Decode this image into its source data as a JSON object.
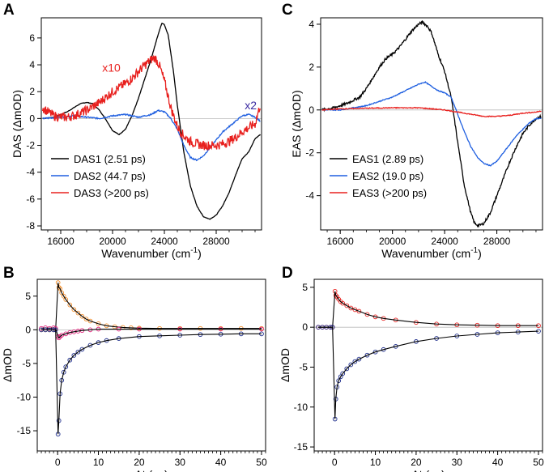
{
  "figure": {
    "colors": {
      "black": "#000000",
      "blue": "#1f5fe0",
      "red": "#e8201e",
      "orange": "#f28c28",
      "magenta": "#e0207a",
      "navy": "#1a2a8a",
      "purple": "#3a2aa0"
    }
  },
  "chart_data": [
    {
      "panel": "A",
      "type": "line",
      "xlabel_main": "Wavenumber (cm",
      "xlabel_sup": "-1",
      "xlabel_end": ")",
      "ylabel": "DAS (ΔmOD)",
      "xlim": [
        14500,
        31500
      ],
      "ylim": [
        -8.3,
        7.5
      ],
      "xticks": [
        16000,
        20000,
        24000,
        28000
      ],
      "xtick_labels": [
        "16000",
        "20000",
        "24000",
        "28000"
      ],
      "yticks": [
        -8,
        -6,
        -4,
        -2,
        0,
        2,
        4,
        6
      ],
      "ytick_labels": [
        "-8",
        "-6",
        "-4",
        "-2",
        "0",
        "2",
        "4",
        "6"
      ],
      "legend": [
        "DAS1 (2.51 ps)",
        "DAS2 (44.7 ps)",
        "DAS3 (>200 ps)"
      ],
      "annotations": [
        {
          "text": "x10",
          "x": 19200,
          "y": 3.5,
          "color": "red"
        },
        {
          "text": "x2",
          "x": 30200,
          "y": 0.7,
          "color": "purple"
        }
      ],
      "series": [
        {
          "name": "DAS1 (2.51 ps)",
          "color": "black",
          "x": [
            14600,
            15500,
            16500,
            17500,
            18000,
            18500,
            19000,
            19500,
            20000,
            20500,
            21000,
            21500,
            22000,
            22500,
            23000,
            23500,
            23800,
            24000,
            24300,
            24700,
            25000,
            25500,
            26000,
            26500,
            27000,
            27500,
            28000,
            28500,
            29000,
            29500,
            30000,
            30500,
            31000,
            31400
          ],
          "y": [
            0.0,
            0.1,
            0.5,
            1.1,
            1.2,
            1.1,
            0.6,
            -0.1,
            -0.9,
            -1.2,
            -0.8,
            0.2,
            1.5,
            3.0,
            4.5,
            6.2,
            7.1,
            7.0,
            6.2,
            3.5,
            1.0,
            -2.5,
            -5.0,
            -6.5,
            -7.3,
            -7.5,
            -7.2,
            -6.5,
            -5.5,
            -4.2,
            -3.0,
            -2.5,
            -1.5,
            -1.2
          ]
        },
        {
          "name": "DAS2 (44.7 ps)",
          "color": "blue",
          "x": [
            14600,
            16000,
            17000,
            18000,
            19000,
            20000,
            21000,
            22000,
            22500,
            23000,
            23500,
            24000,
            24500,
            25000,
            25500,
            26000,
            26500,
            27000,
            27500,
            28000,
            28500,
            29000,
            29500,
            30000,
            30500,
            31000,
            31400
          ],
          "y": [
            0.0,
            0.1,
            0.2,
            0.1,
            0.0,
            0.2,
            0.3,
            0.1,
            0.2,
            0.3,
            0.6,
            0.5,
            0.0,
            -0.8,
            -2.0,
            -2.9,
            -3.1,
            -2.8,
            -2.2,
            -1.6,
            -1.0,
            -0.6,
            -0.2,
            0.2,
            0.3,
            0.1,
            -0.2
          ]
        },
        {
          "name": "DAS3 (>200 ps)",
          "color": "red",
          "x": [
            14600,
            15000,
            15500,
            16000,
            16500,
            17000,
            17500,
            18000,
            18500,
            19000,
            19500,
            20000,
            20500,
            21000,
            21500,
            22000,
            22500,
            23000,
            23300,
            23600,
            24000,
            24500,
            25000,
            25500,
            26000,
            26500,
            27000,
            27500,
            28000,
            28500,
            29000,
            29500,
            30000,
            30500,
            31000,
            31400
          ],
          "y": [
            0.8,
            0.5,
            0.2,
            0.1,
            0.1,
            0.2,
            0.4,
            0.6,
            0.9,
            1.2,
            1.6,
            2.0,
            2.3,
            2.6,
            3.0,
            3.5,
            4.0,
            4.4,
            4.5,
            4.0,
            2.8,
            0.8,
            -0.6,
            -1.3,
            -1.7,
            -1.9,
            -2.0,
            -2.0,
            -2.0,
            -1.9,
            -1.7,
            -1.4,
            -1.0,
            -0.7,
            -0.4,
            1.0
          ]
        }
      ]
    },
    {
      "panel": "C",
      "type": "line",
      "xlabel_main": "Wavenumber (cm",
      "xlabel_sup": "-1",
      "xlabel_end": ")",
      "ylabel": "EAS (ΔmOD)",
      "xlim": [
        14500,
        31500
      ],
      "ylim": [
        -5.6,
        4.3
      ],
      "xticks": [
        16000,
        20000,
        24000,
        28000
      ],
      "xtick_labels": [
        "16000",
        "20000",
        "24000",
        "28000"
      ],
      "yticks": [
        -4,
        -2,
        0,
        2,
        4
      ],
      "ytick_labels": [
        "-4",
        "-2",
        "0",
        "2",
        "4"
      ],
      "legend": [
        "EAS1 (2.89 ps)",
        "EAS2 (19.0 ps)",
        "EAS3 (>200 ps)"
      ],
      "series": [
        {
          "name": "EAS1 (2.89 ps)",
          "color": "black",
          "x": [
            14600,
            15500,
            16500,
            17500,
            18000,
            18500,
            19000,
            19500,
            20000,
            20500,
            21000,
            21500,
            22000,
            22300,
            22700,
            23000,
            23500,
            24000,
            24500,
            25000,
            25500,
            26000,
            26300,
            26600,
            27000,
            27500,
            28000,
            28500,
            29000,
            29500,
            30000,
            30500,
            31000,
            31400
          ],
          "y": [
            0.0,
            0.1,
            0.3,
            0.6,
            1.0,
            1.5,
            2.0,
            2.4,
            2.6,
            2.9,
            3.3,
            3.7,
            4.0,
            4.1,
            3.9,
            3.6,
            2.6,
            1.8,
            0.6,
            -1.5,
            -3.5,
            -4.8,
            -5.3,
            -5.4,
            -5.3,
            -4.8,
            -4.0,
            -3.2,
            -2.4,
            -1.7,
            -1.1,
            -0.7,
            -0.4,
            -0.3
          ]
        },
        {
          "name": "EAS2 (19.0 ps)",
          "color": "blue",
          "x": [
            14600,
            16000,
            17000,
            18000,
            19000,
            20000,
            21000,
            22000,
            22500,
            23000,
            23500,
            24000,
            24500,
            25000,
            25500,
            26000,
            26500,
            27000,
            27500,
            28000,
            28500,
            29000,
            29500,
            30000,
            30500,
            31000,
            31400
          ],
          "y": [
            0.0,
            0.0,
            0.1,
            0.2,
            0.4,
            0.6,
            0.9,
            1.2,
            1.3,
            1.1,
            0.9,
            0.8,
            0.6,
            -0.2,
            -1.0,
            -1.7,
            -2.2,
            -2.5,
            -2.6,
            -2.4,
            -2.0,
            -1.6,
            -1.2,
            -0.9,
            -0.6,
            -0.4,
            -0.4
          ]
        },
        {
          "name": "EAS3 (>200 ps)",
          "color": "red",
          "x": [
            14600,
            16000,
            18000,
            20000,
            22000,
            23000,
            24000,
            25000,
            26000,
            27000,
            28000,
            29000,
            30000,
            31000,
            31400
          ],
          "y": [
            0.0,
            0.05,
            0.08,
            0.1,
            0.1,
            0.05,
            0.0,
            -0.1,
            -0.2,
            -0.3,
            -0.3,
            -0.25,
            -0.15,
            -0.1,
            -0.05
          ]
        }
      ]
    },
    {
      "panel": "B",
      "type": "scatter",
      "xlabel": "Δt (ps)",
      "ylabel": "ΔmOD",
      "xlim": [
        -5,
        51
      ],
      "ylim": [
        -18,
        7.5
      ],
      "xticks": [
        0,
        10,
        20,
        30,
        40,
        50
      ],
      "xtick_labels": [
        "0",
        "10",
        "20",
        "30",
        "40",
        "50"
      ],
      "yticks": [
        -15,
        -10,
        -5,
        0,
        5
      ],
      "ytick_labels": [
        "-15",
        "-10",
        "-5",
        "0",
        "5"
      ],
      "series": [
        {
          "name": "trace-orange",
          "color": "orange",
          "fit": "black",
          "x": [
            -4,
            -3,
            -2,
            -1,
            -0.5,
            0.1,
            0.3,
            0.6,
            1,
            1.5,
            2,
            3,
            4,
            5,
            6,
            7,
            8,
            10,
            12,
            14,
            16,
            18,
            20,
            25,
            30,
            35,
            40,
            45,
            50
          ],
          "y": [
            0.0,
            0.0,
            0.0,
            0.0,
            0.0,
            7.0,
            6.3,
            6.1,
            5.5,
            5.0,
            4.5,
            3.7,
            3.0,
            2.5,
            2.0,
            1.6,
            1.3,
            0.9,
            0.6,
            0.45,
            0.35,
            0.3,
            0.25,
            0.2,
            0.2,
            0.2,
            0.2,
            0.2,
            0.2
          ]
        },
        {
          "name": "trace-magenta",
          "color": "magenta",
          "fit": "black",
          "x": [
            -4,
            -3,
            -2,
            -1,
            -0.5,
            0.1,
            0.3,
            0.6,
            1,
            2,
            3,
            4,
            5,
            6,
            8,
            10,
            15,
            20,
            30,
            40,
            50
          ],
          "y": [
            0.2,
            0.3,
            0.2,
            0.3,
            0.2,
            -1.0,
            -1.2,
            -1.0,
            -0.8,
            -0.6,
            -0.4,
            -0.3,
            -0.2,
            -0.1,
            0.0,
            0.1,
            0.1,
            0.1,
            0.1,
            0.1,
            0.1
          ]
        },
        {
          "name": "trace-blue",
          "color": "navy",
          "fit": "black",
          "x": [
            -4,
            -3,
            -2,
            -1,
            -0.5,
            0.1,
            0.3,
            0.6,
            1,
            1.5,
            2,
            3,
            4,
            5,
            6,
            8,
            10,
            12,
            15,
            20,
            25,
            30,
            35,
            40,
            45,
            50
          ],
          "y": [
            0.0,
            0.0,
            0.0,
            0.0,
            0.0,
            -15.5,
            -13.5,
            -9.5,
            -7.5,
            -6.3,
            -5.5,
            -4.5,
            -3.8,
            -3.3,
            -2.9,
            -2.3,
            -1.9,
            -1.6,
            -1.3,
            -1.0,
            -0.9,
            -0.8,
            -0.7,
            -0.65,
            -0.6,
            -0.6
          ]
        }
      ]
    },
    {
      "panel": "D",
      "type": "scatter",
      "xlabel": "Δt (ps)",
      "ylabel": "ΔmOD",
      "xlim": [
        -5,
        51
      ],
      "ylim": [
        -15.5,
        6.0
      ],
      "xticks": [
        0,
        10,
        20,
        30,
        40,
        50
      ],
      "xtick_labels": [
        "0",
        "10",
        "20",
        "30",
        "40",
        "50"
      ],
      "yticks": [
        -15,
        -10,
        -5,
        0,
        5
      ],
      "ytick_labels": [
        "-15",
        "-10",
        "-5",
        "0",
        "5"
      ],
      "series": [
        {
          "name": "trace-red",
          "color": "red",
          "fit": "black",
          "x": [
            -4,
            -3,
            -2,
            -1,
            -0.5,
            0.1,
            0.3,
            0.6,
            1,
            1.5,
            2,
            3,
            4,
            5,
            6,
            8,
            10,
            12,
            15,
            20,
            25,
            30,
            35,
            40,
            45,
            50
          ],
          "y": [
            0.0,
            0.0,
            0.0,
            0.0,
            0.0,
            4.5,
            4.0,
            3.8,
            3.5,
            3.2,
            3.0,
            2.7,
            2.4,
            2.2,
            2.0,
            1.6,
            1.3,
            1.1,
            0.9,
            0.6,
            0.4,
            0.3,
            0.25,
            0.2,
            0.2,
            0.2
          ]
        },
        {
          "name": "trace-blue",
          "color": "navy",
          "fit": "black",
          "x": [
            -4,
            -3,
            -2,
            -1,
            -0.5,
            0.1,
            0.3,
            0.6,
            1,
            1.5,
            2,
            3,
            4,
            5,
            6,
            8,
            10,
            12,
            15,
            20,
            25,
            30,
            35,
            40,
            45,
            50
          ],
          "y": [
            0.0,
            0.0,
            0.0,
            0.0,
            0.0,
            -11.5,
            -9.0,
            -7.5,
            -6.7,
            -6.2,
            -5.8,
            -5.2,
            -4.7,
            -4.3,
            -4.0,
            -3.5,
            -3.1,
            -2.8,
            -2.4,
            -1.8,
            -1.4,
            -1.1,
            -0.9,
            -0.7,
            -0.6,
            -0.5
          ]
        }
      ]
    }
  ]
}
